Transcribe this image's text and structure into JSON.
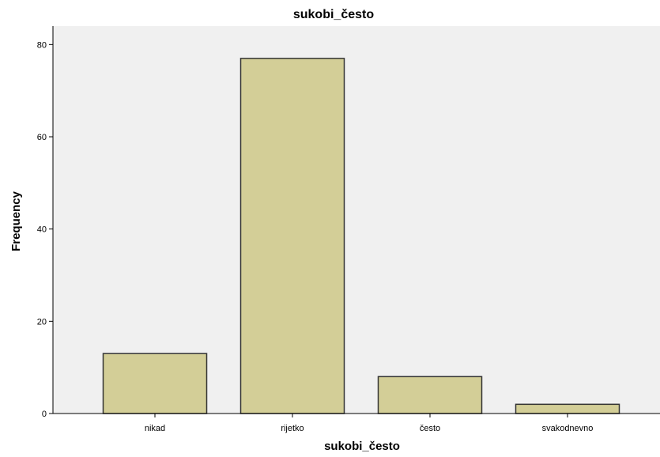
{
  "chart_data": {
    "type": "bar",
    "title": "sukobi_često",
    "xlabel": "sukobi_često",
    "ylabel": "Frequency",
    "categories": [
      "nikad",
      "rijetko",
      "često",
      "svakodnevno"
    ],
    "values": [
      13,
      77,
      8,
      2
    ],
    "ylim": [
      0,
      84
    ],
    "yticks": [
      0,
      20,
      40,
      60,
      80
    ],
    "grid": false,
    "colors": {
      "bar": "#d3ce97",
      "bar_stroke": "#333333",
      "plot_bg": "#f0f0f0"
    }
  }
}
